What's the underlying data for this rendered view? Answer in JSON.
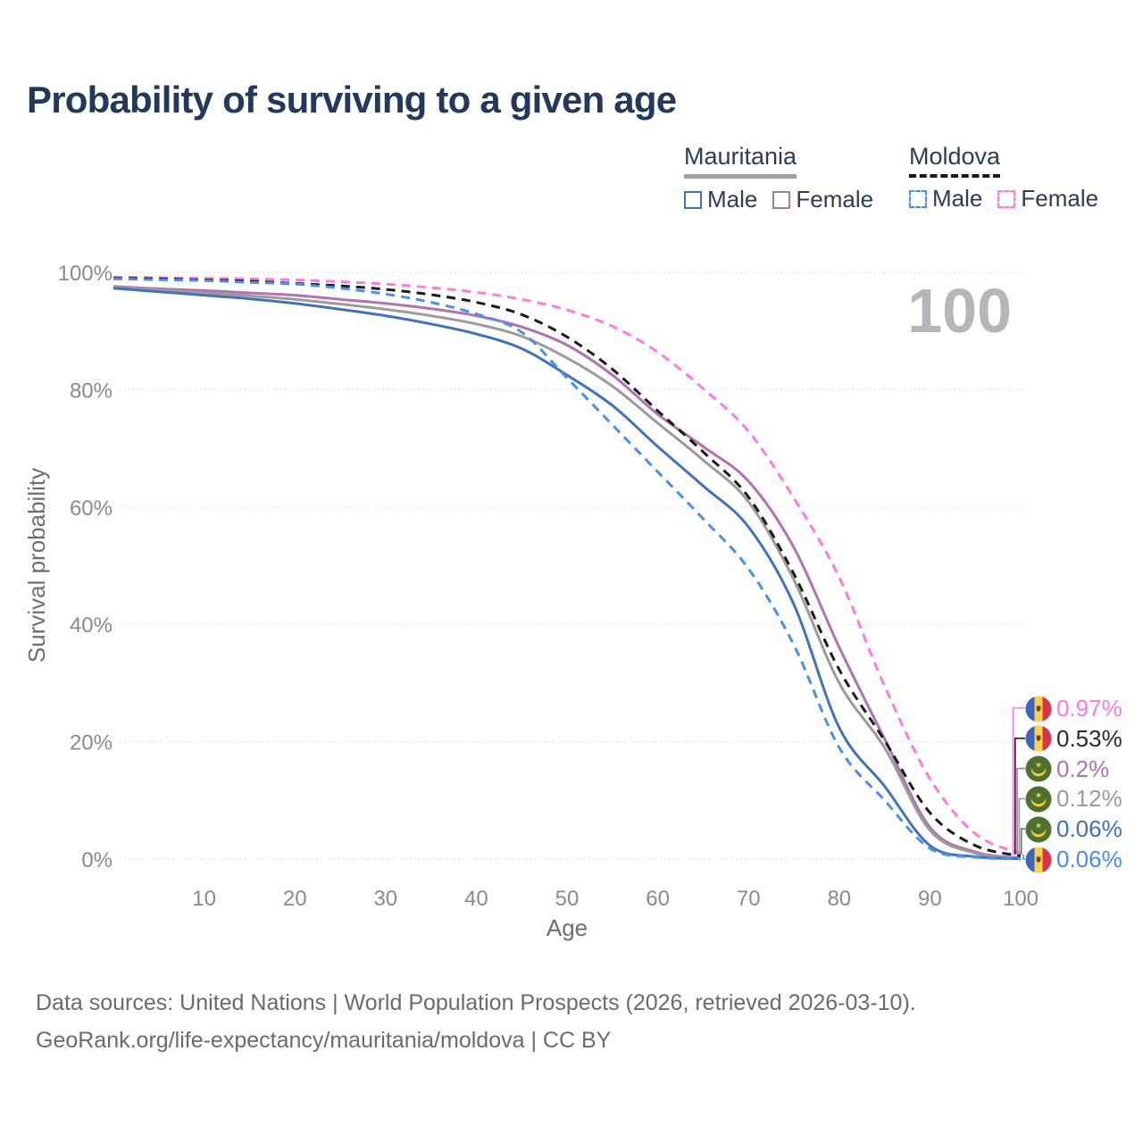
{
  "title": "Probability of surviving to a given age",
  "watermark_age": "100",
  "legend": {
    "groups": [
      {
        "name": "Mauritania",
        "line_color": "#a0a0a0",
        "line_style": "solid",
        "items": [
          {
            "label": "Male",
            "color": "#4472b8",
            "dashed": false
          },
          {
            "label": "Female",
            "color": "#b173ad",
            "dashed": false
          }
        ]
      },
      {
        "name": "Moldova",
        "line_color": "#1b1b1b",
        "line_style": "dashed",
        "items": [
          {
            "label": "Male",
            "color": "#4a90e8",
            "dashed": true
          },
          {
            "label": "Female",
            "color": "#ff7ae0",
            "dashed": true
          }
        ]
      }
    ]
  },
  "footer": {
    "line1": "Data sources: United Nations | World Population Prospects (2026, retrieved 2026-03-10).",
    "line2": "GeoRank.org/life-expectancy/mauritania/moldova | CC BY"
  },
  "chart_data": {
    "type": "line",
    "title": "Probability of surviving to a given age",
    "xlabel": "Age",
    "ylabel": "Survival probability",
    "xlim": [
      0,
      100
    ],
    "ylim": [
      0,
      100
    ],
    "grid": true,
    "x_ticks": [
      10,
      20,
      30,
      40,
      50,
      60,
      70,
      80,
      90,
      100
    ],
    "y_ticks": [
      {
        "value": 0,
        "label": "0%"
      },
      {
        "value": 20,
        "label": "20%"
      },
      {
        "value": 40,
        "label": "40%"
      },
      {
        "value": 60,
        "label": "60%"
      },
      {
        "value": 80,
        "label": "80%"
      },
      {
        "value": 100,
        "label": "100%"
      }
    ],
    "x": [
      0,
      5,
      10,
      15,
      20,
      25,
      30,
      35,
      40,
      45,
      50,
      55,
      60,
      65,
      70,
      75,
      80,
      85,
      90,
      95,
      100
    ],
    "series": [
      {
        "name": "Moldova Female",
        "country": "moldova",
        "color": "#ff7ae0",
        "dashed": true,
        "end_label": "0.97%",
        "end_label_color": "#ff7ae0",
        "end_label_row": 0,
        "values": [
          99.2,
          99.1,
          99.0,
          98.9,
          98.7,
          98.4,
          98.0,
          97.4,
          96.6,
          95.4,
          93.6,
          90.8,
          86.4,
          80.2,
          72.9,
          61.5,
          48.0,
          29.5,
          13.7,
          4.3,
          0.97
        ]
      },
      {
        "name": "Moldova",
        "country": "moldova",
        "color": "#1b1b1b",
        "dashed": true,
        "end_label": "0.53%",
        "end_label_color": "#2b2b2b",
        "end_label_row": 1,
        "values": [
          99.0,
          98.9,
          98.7,
          98.5,
          98.1,
          97.7,
          97.1,
          96.2,
          94.9,
          92.8,
          89.0,
          83.5,
          76.4,
          69.4,
          61.7,
          48.6,
          32.3,
          20.2,
          7.9,
          2.3,
          0.53
        ]
      },
      {
        "name": "Mauritania Female",
        "country": "mauritania",
        "color": "#b173ad",
        "dashed": false,
        "end_label": "0.2%",
        "end_label_color": "#b173ad",
        "end_label_row": 2,
        "values": [
          97.6,
          97.2,
          96.9,
          96.5,
          96.1,
          95.4,
          94.7,
          93.8,
          92.6,
          90.7,
          87.6,
          82.5,
          75.8,
          70.3,
          64.4,
          53.1,
          36.1,
          20.5,
          5.4,
          1.2,
          0.2
        ]
      },
      {
        "name": "Mauritania",
        "country": "mauritania",
        "color": "#9b9b9b",
        "dashed": false,
        "end_label": "0.12%",
        "end_label_color": "#9b9b9b",
        "end_label_row": 3,
        "values": [
          97.5,
          97.0,
          96.5,
          96.0,
          95.4,
          94.6,
          93.7,
          92.6,
          91.2,
          89.1,
          85.4,
          80.6,
          74.3,
          68.0,
          60.9,
          47.6,
          30.0,
          19.0,
          4.9,
          1.0,
          0.12
        ]
      },
      {
        "name": "Mauritania Male",
        "country": "mauritania",
        "color": "#4472b8",
        "dashed": false,
        "end_label": "0.06%",
        "end_label_color": "#3f6fb5",
        "end_label_row": 4,
        "values": [
          97.3,
          96.7,
          96.1,
          95.5,
          94.7,
          93.7,
          92.6,
          91.2,
          89.5,
          87.0,
          82.5,
          77.3,
          70.3,
          63.6,
          56.6,
          43.4,
          22.4,
          12.4,
          2.3,
          0.4,
          0.06
        ]
      },
      {
        "name": "Moldova Male",
        "country": "moldova",
        "color": "#4a90e8",
        "dashed": true,
        "end_label": "0.06%",
        "end_label_color": "#4b8bea",
        "end_label_row": 5,
        "values": [
          98.9,
          98.75,
          98.6,
          98.3,
          98.0,
          97.3,
          96.3,
          94.9,
          92.9,
          89.8,
          82.0,
          74.0,
          66.0,
          58.0,
          49.5,
          36.5,
          19.0,
          10.0,
          1.8,
          0.3,
          0.06
        ]
      }
    ]
  }
}
